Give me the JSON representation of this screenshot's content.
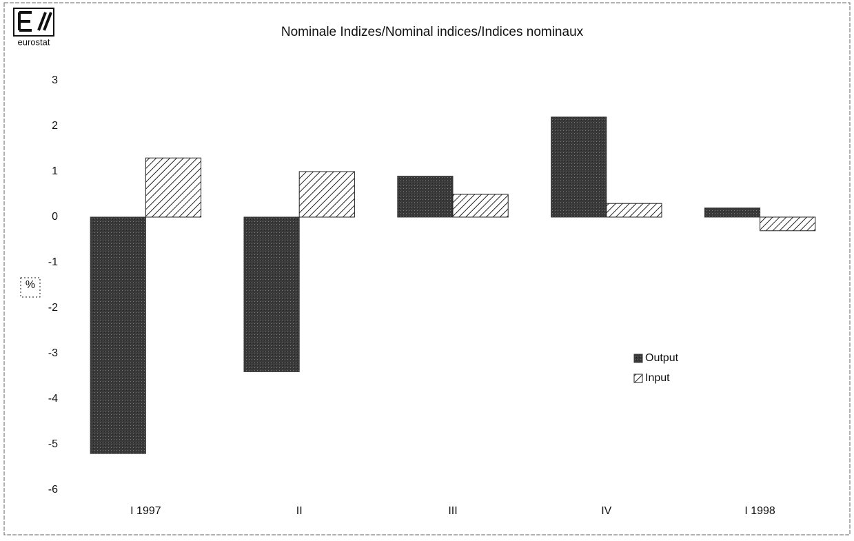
{
  "logo_text": "eurostat",
  "chart_data": {
    "type": "bar",
    "title": "Nominale Indizes/Nominal indices/Indices nominaux",
    "ylabel": "%",
    "categories": [
      "I 1997",
      "II",
      "III",
      "IV",
      "I 1998"
    ],
    "series": [
      {
        "name": "Output",
        "color": "#3a3a3a",
        "style": "solid",
        "values": [
          -5.2,
          -3.4,
          0.9,
          2.2,
          0.2
        ]
      },
      {
        "name": "Input",
        "color": "#222222",
        "style": "hatch",
        "values": [
          1.3,
          1.0,
          0.5,
          0.3,
          -0.3
        ]
      }
    ],
    "ylim": [
      -6,
      3
    ],
    "yticks": [
      -6,
      -5,
      -4,
      -3,
      -2,
      -1,
      0,
      1,
      2,
      3
    ],
    "grid": false,
    "legend": "right"
  }
}
